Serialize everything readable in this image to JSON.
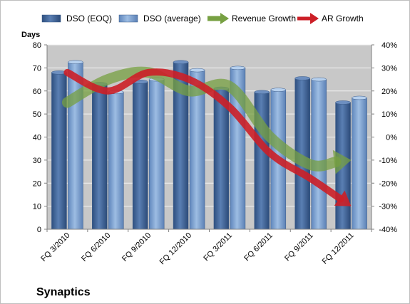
{
  "chart_data": {
    "type": "bar",
    "title": "Synaptics",
    "ylabel": "Days",
    "categories": [
      "FQ 3/2010",
      "FQ 6/2010",
      "FQ 9/2010",
      "FQ 12/2010",
      "FQ 3/2011",
      "FQ 6/2011",
      "FQ 9/2011",
      "FQ 12/2011"
    ],
    "series": [
      {
        "name": "DSO (EOQ)",
        "kind": "bar",
        "axis": "left",
        "color": "#4a6c9b",
        "values": [
          68,
          63,
          64,
          72.5,
          61,
          59.5,
          65.5,
          55
        ]
      },
      {
        "name": "DSO (average)",
        "kind": "bar",
        "axis": "left",
        "color": "#7ea3d0",
        "values": [
          72.5,
          59.5,
          65,
          69,
          70,
          60.5,
          65,
          57
        ]
      },
      {
        "name": "Revenue Growth",
        "kind": "arrow-line",
        "axis": "right",
        "color": "#77a042",
        "values": [
          15,
          25,
          28,
          20,
          22,
          0,
          -12,
          -10
        ]
      },
      {
        "name": "AR Growth",
        "kind": "arrow-line",
        "axis": "right",
        "color": "#cc1f27",
        "values": [
          28,
          20,
          28,
          25,
          13,
          -7,
          -18,
          -30
        ]
      }
    ],
    "y_left": {
      "min": 0,
      "max": 80,
      "step": 10,
      "ticks": [
        "0",
        "10",
        "20",
        "30",
        "40",
        "50",
        "60",
        "70",
        "80"
      ]
    },
    "y_right": {
      "min": -40,
      "max": 40,
      "step": 10,
      "ticks": [
        "-40%",
        "-30%",
        "-20%",
        "-10%",
        "0%",
        "10%",
        "20%",
        "30%",
        "40%"
      ]
    },
    "legend_position": "top",
    "grid": true
  },
  "colors": {
    "plot_bg": "#c8c8c8",
    "gridline": "#f2f2f2",
    "axis": "#808080",
    "text": "#000000"
  }
}
